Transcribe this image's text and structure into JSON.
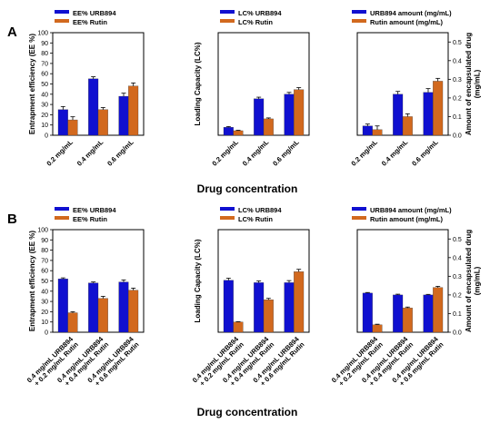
{
  "panels": [
    {
      "letter": "A"
    },
    {
      "letter": "B"
    }
  ],
  "xlabels": [
    "Drug concentration",
    "Drug concentration"
  ],
  "colors": {
    "urb": "#1010d0",
    "rutin": "#d2691e"
  },
  "chart_data": [
    {
      "type": "bar",
      "panel": "A",
      "axis_side": "left",
      "ylabel": "Entrapment efficiency (EE %)",
      "ylim": [
        0,
        100
      ],
      "yticks": [
        0,
        10,
        20,
        30,
        40,
        50,
        60,
        70,
        80,
        90,
        100
      ],
      "categories": [
        "0.2 mg/mL",
        "0.4 mg/mL",
        "0.6 mg/mL"
      ],
      "series": [
        {
          "name": "EE% URB894",
          "values": [
            25,
            55,
            38
          ],
          "errors": [
            3,
            2,
            3
          ]
        },
        {
          "name": "EE% Rutin",
          "values": [
            15,
            25,
            48
          ],
          "errors": [
            3,
            2,
            3
          ]
        }
      ]
    },
    {
      "type": "bar",
      "panel": "A",
      "axis_side": "left",
      "ylabel": "Loading Capacity (LC%)",
      "ylim": [
        0,
        4.5
      ],
      "yticks": [],
      "categories": [
        "0.2 mg/mL",
        "0.4 mg/mL",
        "0.6 mg/mL"
      ],
      "series": [
        {
          "name": "LC% URB894",
          "values": [
            0.35,
            1.6,
            1.8
          ],
          "errors": [
            0.03,
            0.07,
            0.08
          ]
        },
        {
          "name": "LC% Rutin",
          "values": [
            0.2,
            0.72,
            2.0
          ],
          "errors": [
            0.02,
            0.04,
            0.09
          ]
        }
      ]
    },
    {
      "type": "bar",
      "panel": "A",
      "axis_side": "right",
      "ylabel": "Amount of encapsulated drug (mg/mL)",
      "ylim": [
        0,
        0.55
      ],
      "yticks": [
        0.0,
        0.1,
        0.2,
        0.3,
        0.4,
        0.5
      ],
      "categories": [
        "0.2 mg/mL",
        "0.4 mg/mL",
        "0.6 mg/mL"
      ],
      "series": [
        {
          "name": "URB894 amount (mg/mL)",
          "values": [
            0.05,
            0.22,
            0.23
          ],
          "errors": [
            0.01,
            0.015,
            0.02
          ]
        },
        {
          "name": "Rutin amount (mg/mL)",
          "values": [
            0.03,
            0.1,
            0.29
          ],
          "errors": [
            0.02,
            0.015,
            0.015
          ]
        }
      ]
    },
    {
      "type": "bar",
      "panel": "B",
      "axis_side": "left",
      "ylabel": "Entrapment efficiency (EE %)",
      "ylim": [
        0,
        100
      ],
      "yticks": [
        0,
        10,
        20,
        30,
        40,
        50,
        60,
        70,
        80,
        90,
        100
      ],
      "categories": [
        "0.4 mg/mL URB894 + 0.2 mg/mL Rutin",
        "0.4 mg/mL URB894 + 0.4 mg/mL Rutin",
        "0.4 mg/mL URB894 + 0.6 mg/mL Rutin"
      ],
      "series": [
        {
          "name": "EE% URB894",
          "values": [
            52,
            48,
            49
          ],
          "errors": [
            1,
            1,
            2
          ]
        },
        {
          "name": "EE% Rutin",
          "values": [
            19,
            33,
            41
          ],
          "errors": [
            1,
            2,
            2
          ]
        }
      ]
    },
    {
      "type": "bar",
      "panel": "B",
      "axis_side": "left",
      "ylabel": "Loading Capacity (LC%)",
      "ylim": [
        0,
        3.0
      ],
      "yticks": [],
      "categories": [
        "0.4 mg/mL URB894 + 0.2 mg/mL Rutin",
        "0.4 mg/mL URB894 + 0.4 mg/mL Rutin",
        "0.4 mg/mL URB894 + 0.6 mg/mL Rutin"
      ],
      "series": [
        {
          "name": "LC% URB894",
          "values": [
            1.52,
            1.45,
            1.45
          ],
          "errors": [
            0.06,
            0.05,
            0.06
          ]
        },
        {
          "name": "LC% Rutin",
          "values": [
            0.3,
            0.95,
            1.77
          ],
          "errors": [
            0.01,
            0.04,
            0.07
          ]
        }
      ]
    },
    {
      "type": "bar",
      "panel": "B",
      "axis_side": "right",
      "ylabel": "Amount of encapsulated drug (mg/mL)",
      "ylim": [
        0,
        0.55
      ],
      "yticks": [
        0.0,
        0.1,
        0.2,
        0.3,
        0.4,
        0.5
      ],
      "categories": [
        "0.4 mg/mL URB894 + 0.2 mg/mL Rutin",
        "0.4 mg/mL URB894 + 0.4 mg/mL Rutin",
        "0.4 mg/mL URB894 + 0.6 mg/mL Rutin"
      ],
      "series": [
        {
          "name": "URB894 amount (mg/mL)",
          "values": [
            0.21,
            0.2,
            0.2
          ],
          "errors": [
            0.003,
            0.004,
            0.003
          ]
        },
        {
          "name": "Rutin amount (mg/mL)",
          "values": [
            0.04,
            0.13,
            0.24
          ],
          "errors": [
            0.003,
            0.005,
            0.006
          ]
        }
      ]
    }
  ]
}
